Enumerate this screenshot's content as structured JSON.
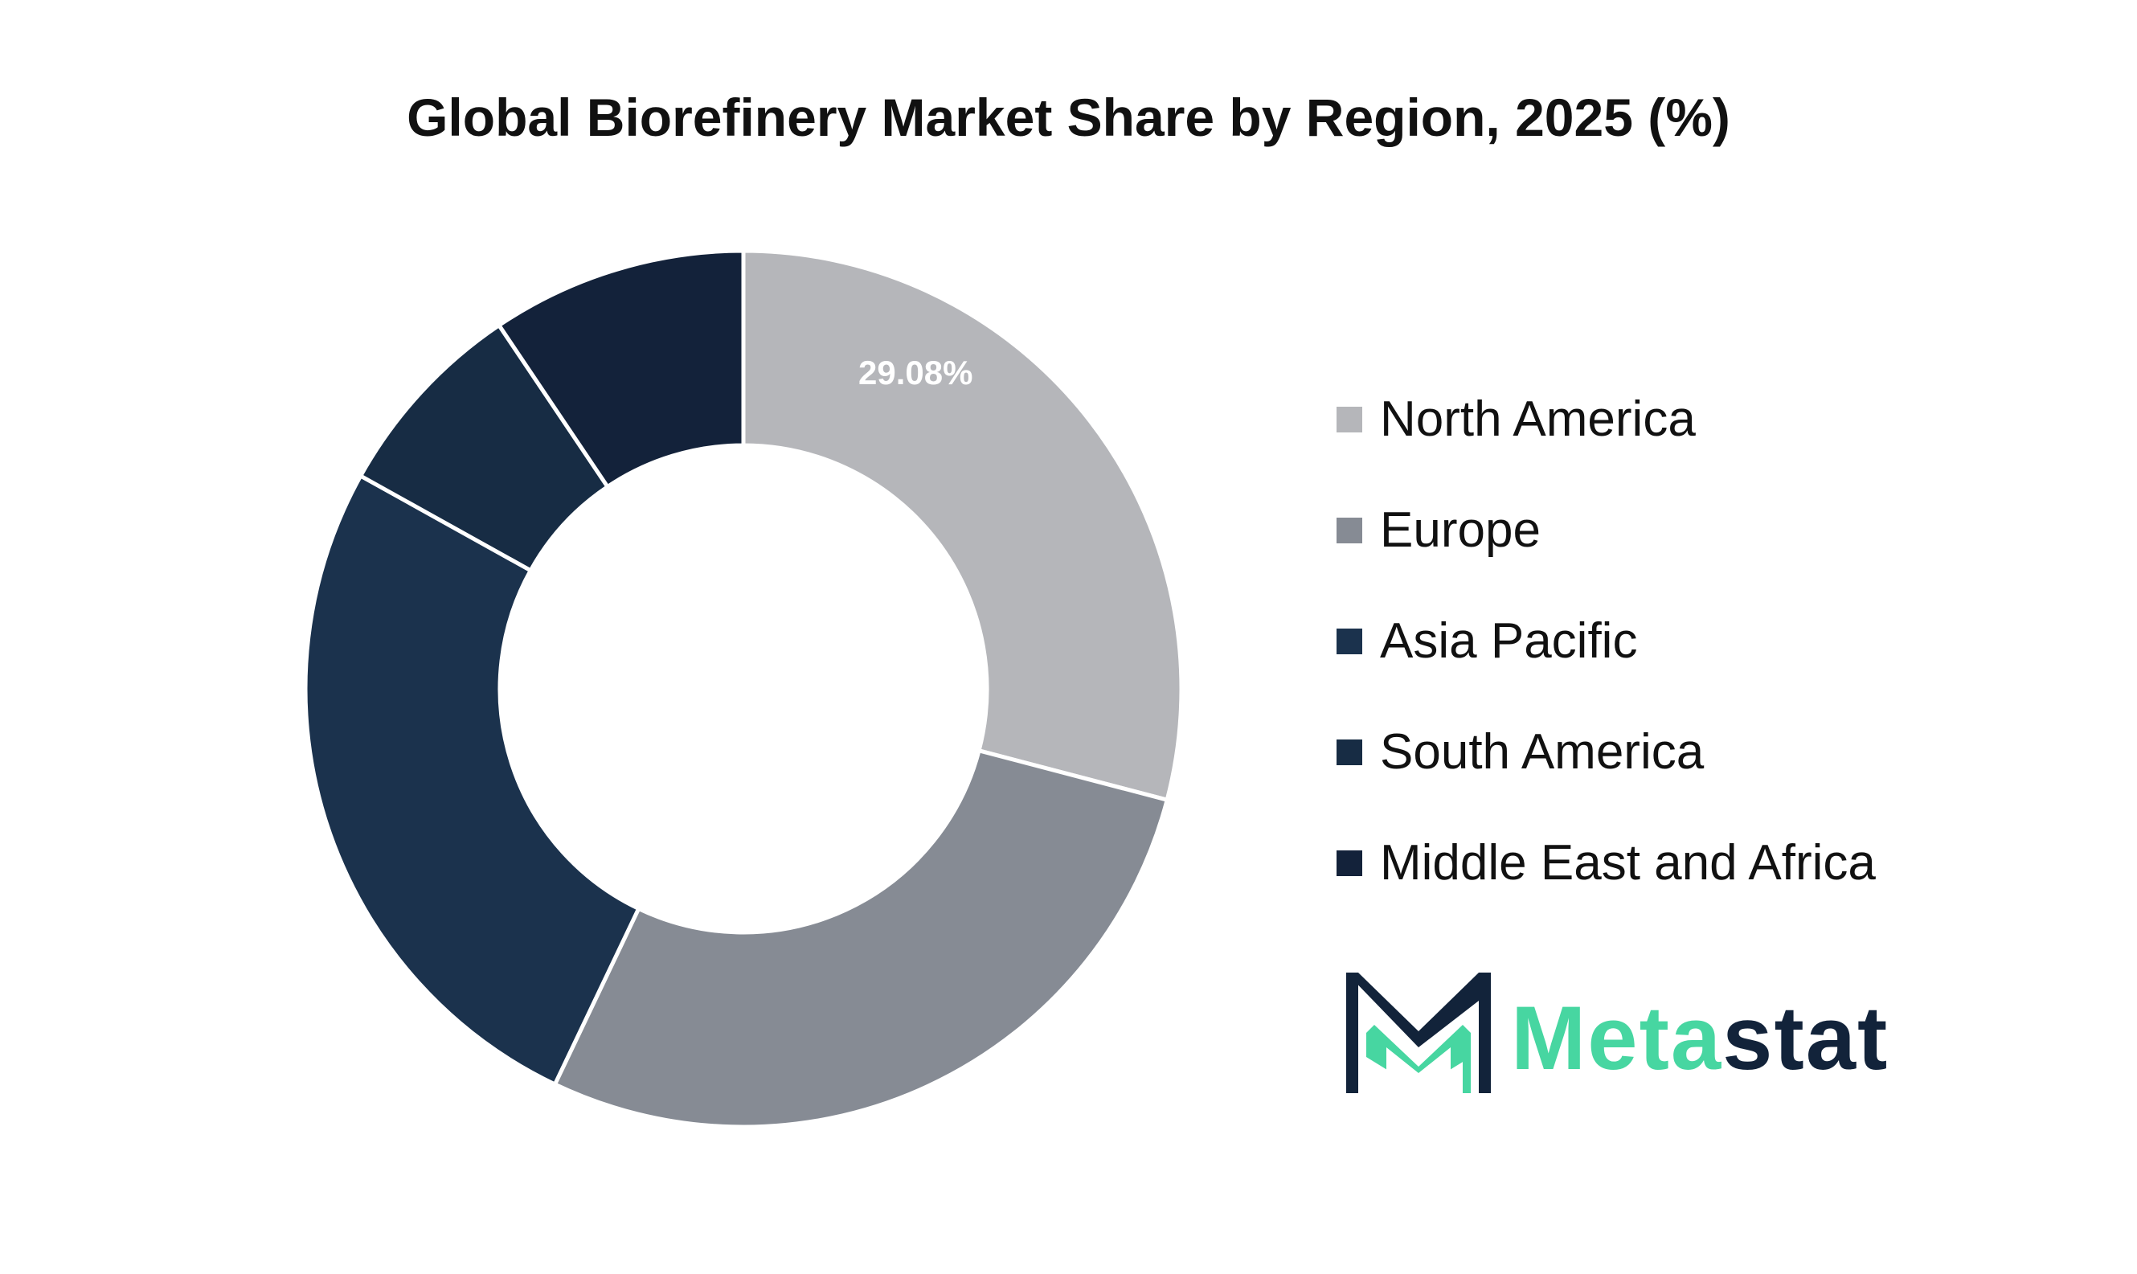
{
  "chart_data": {
    "type": "pie",
    "variant": "donut",
    "title": "Global Biorefinery Market Share by Region, 2025 (%)",
    "categories": [
      "North America",
      "Europe",
      "Asia Pacific",
      "South America",
      "Middle East and Africa"
    ],
    "values": [
      29.08,
      28.0,
      26.0,
      7.5,
      9.42
    ],
    "colors": [
      "#b5b6ba",
      "#868b94",
      "#1b324d",
      "#172c44",
      "#13223a"
    ],
    "data_labels": [
      "29.08%",
      "",
      "",
      "",
      ""
    ],
    "legend_position": "right"
  },
  "brand": {
    "name_part_a": "Meta",
    "name_part_b": "stat",
    "accent_color": "#47d6a1",
    "dark_color": "#12233a"
  }
}
